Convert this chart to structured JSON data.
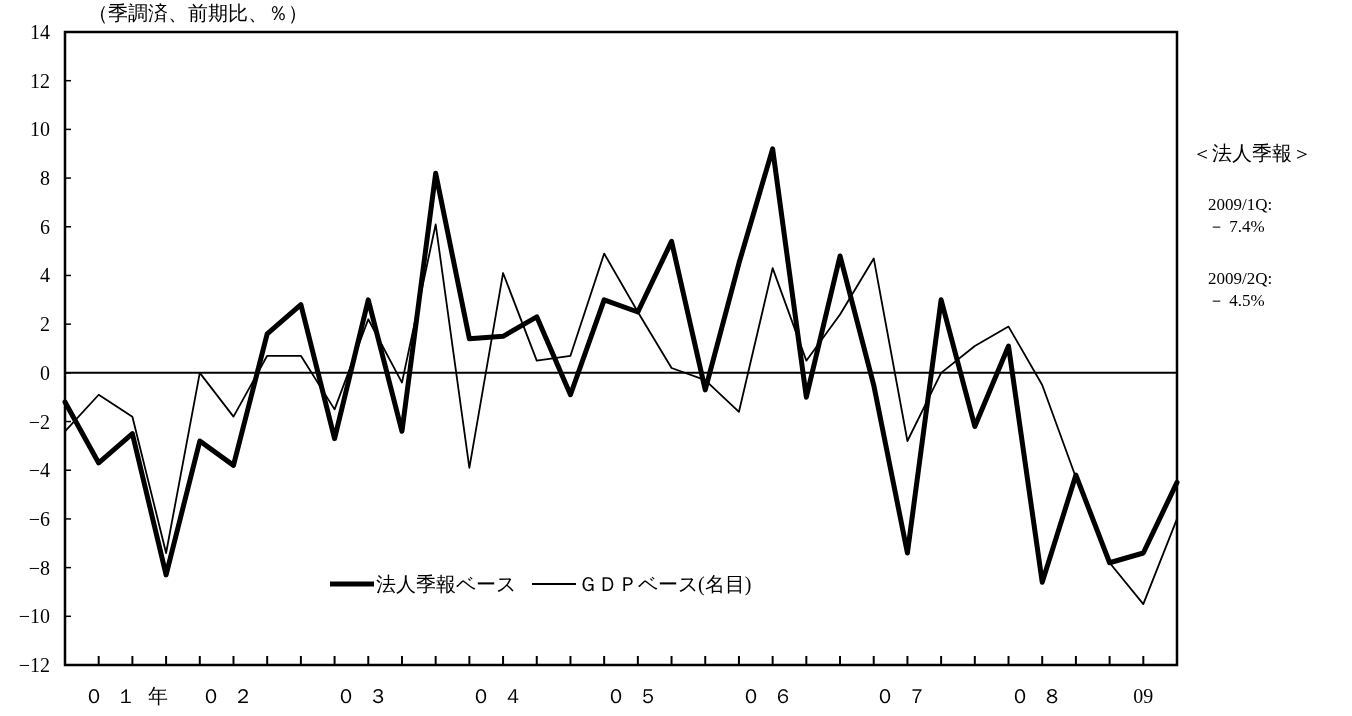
{
  "chart_data": {
    "type": "line",
    "ylabel": "（季調済、前期比、％）",
    "categories": [
      null,
      null,
      "０１年",
      null,
      null,
      "０２",
      null,
      null,
      null,
      "０３",
      null,
      null,
      null,
      "０４",
      null,
      null,
      null,
      "０５",
      null,
      null,
      null,
      "０６",
      null,
      null,
      null,
      "０７",
      null,
      null,
      null,
      "０８",
      null,
      null,
      "09",
      null
    ],
    "ylim": [
      -12,
      14
    ],
    "yticks": [
      -12,
      -10,
      -8,
      -6,
      -4,
      -2,
      0,
      2,
      4,
      6,
      8,
      10,
      12,
      14
    ],
    "series": [
      {
        "name": "法人季報ベース",
        "color": "#000000",
        "values": [
          -1.2,
          -3.7,
          -2.5,
          -8.3,
          -2.8,
          -3.8,
          1.6,
          2.8,
          -2.7,
          3.0,
          -2.4,
          8.2,
          1.4,
          1.5,
          2.3,
          -0.9,
          3.0,
          2.5,
          5.4,
          -0.7,
          4.5,
          9.2,
          -1.0,
          4.8,
          -0.5,
          -7.4,
          3.0,
          -2.2,
          1.1,
          -8.6,
          -4.2,
          -7.8,
          -7.4,
          -4.5
        ]
      },
      {
        "name": "ＧＤＰベース(名目)",
        "color": "#000000",
        "values": [
          -2.4,
          -0.9,
          -1.8,
          -7.4,
          0.0,
          -1.8,
          0.7,
          0.7,
          -1.5,
          2.2,
          -0.4,
          6.1,
          -3.9,
          4.1,
          0.5,
          0.7,
          4.9,
          2.5,
          0.2,
          -0.3,
          -1.6,
          4.3,
          0.5,
          2.4,
          4.7,
          -2.8,
          0.0,
          1.1,
          1.9,
          -0.5,
          -4.3,
          -7.8,
          -9.5,
          -6.0
        ]
      }
    ],
    "legend": "bottom",
    "ref_lines": [
      {
        "axis": "y",
        "value": 0
      }
    ],
    "annotations": [
      "＜法人季報＞",
      "2009/1Q:",
      "－ 7.4%",
      "2009/2Q:",
      "－ 4.5%"
    ]
  }
}
